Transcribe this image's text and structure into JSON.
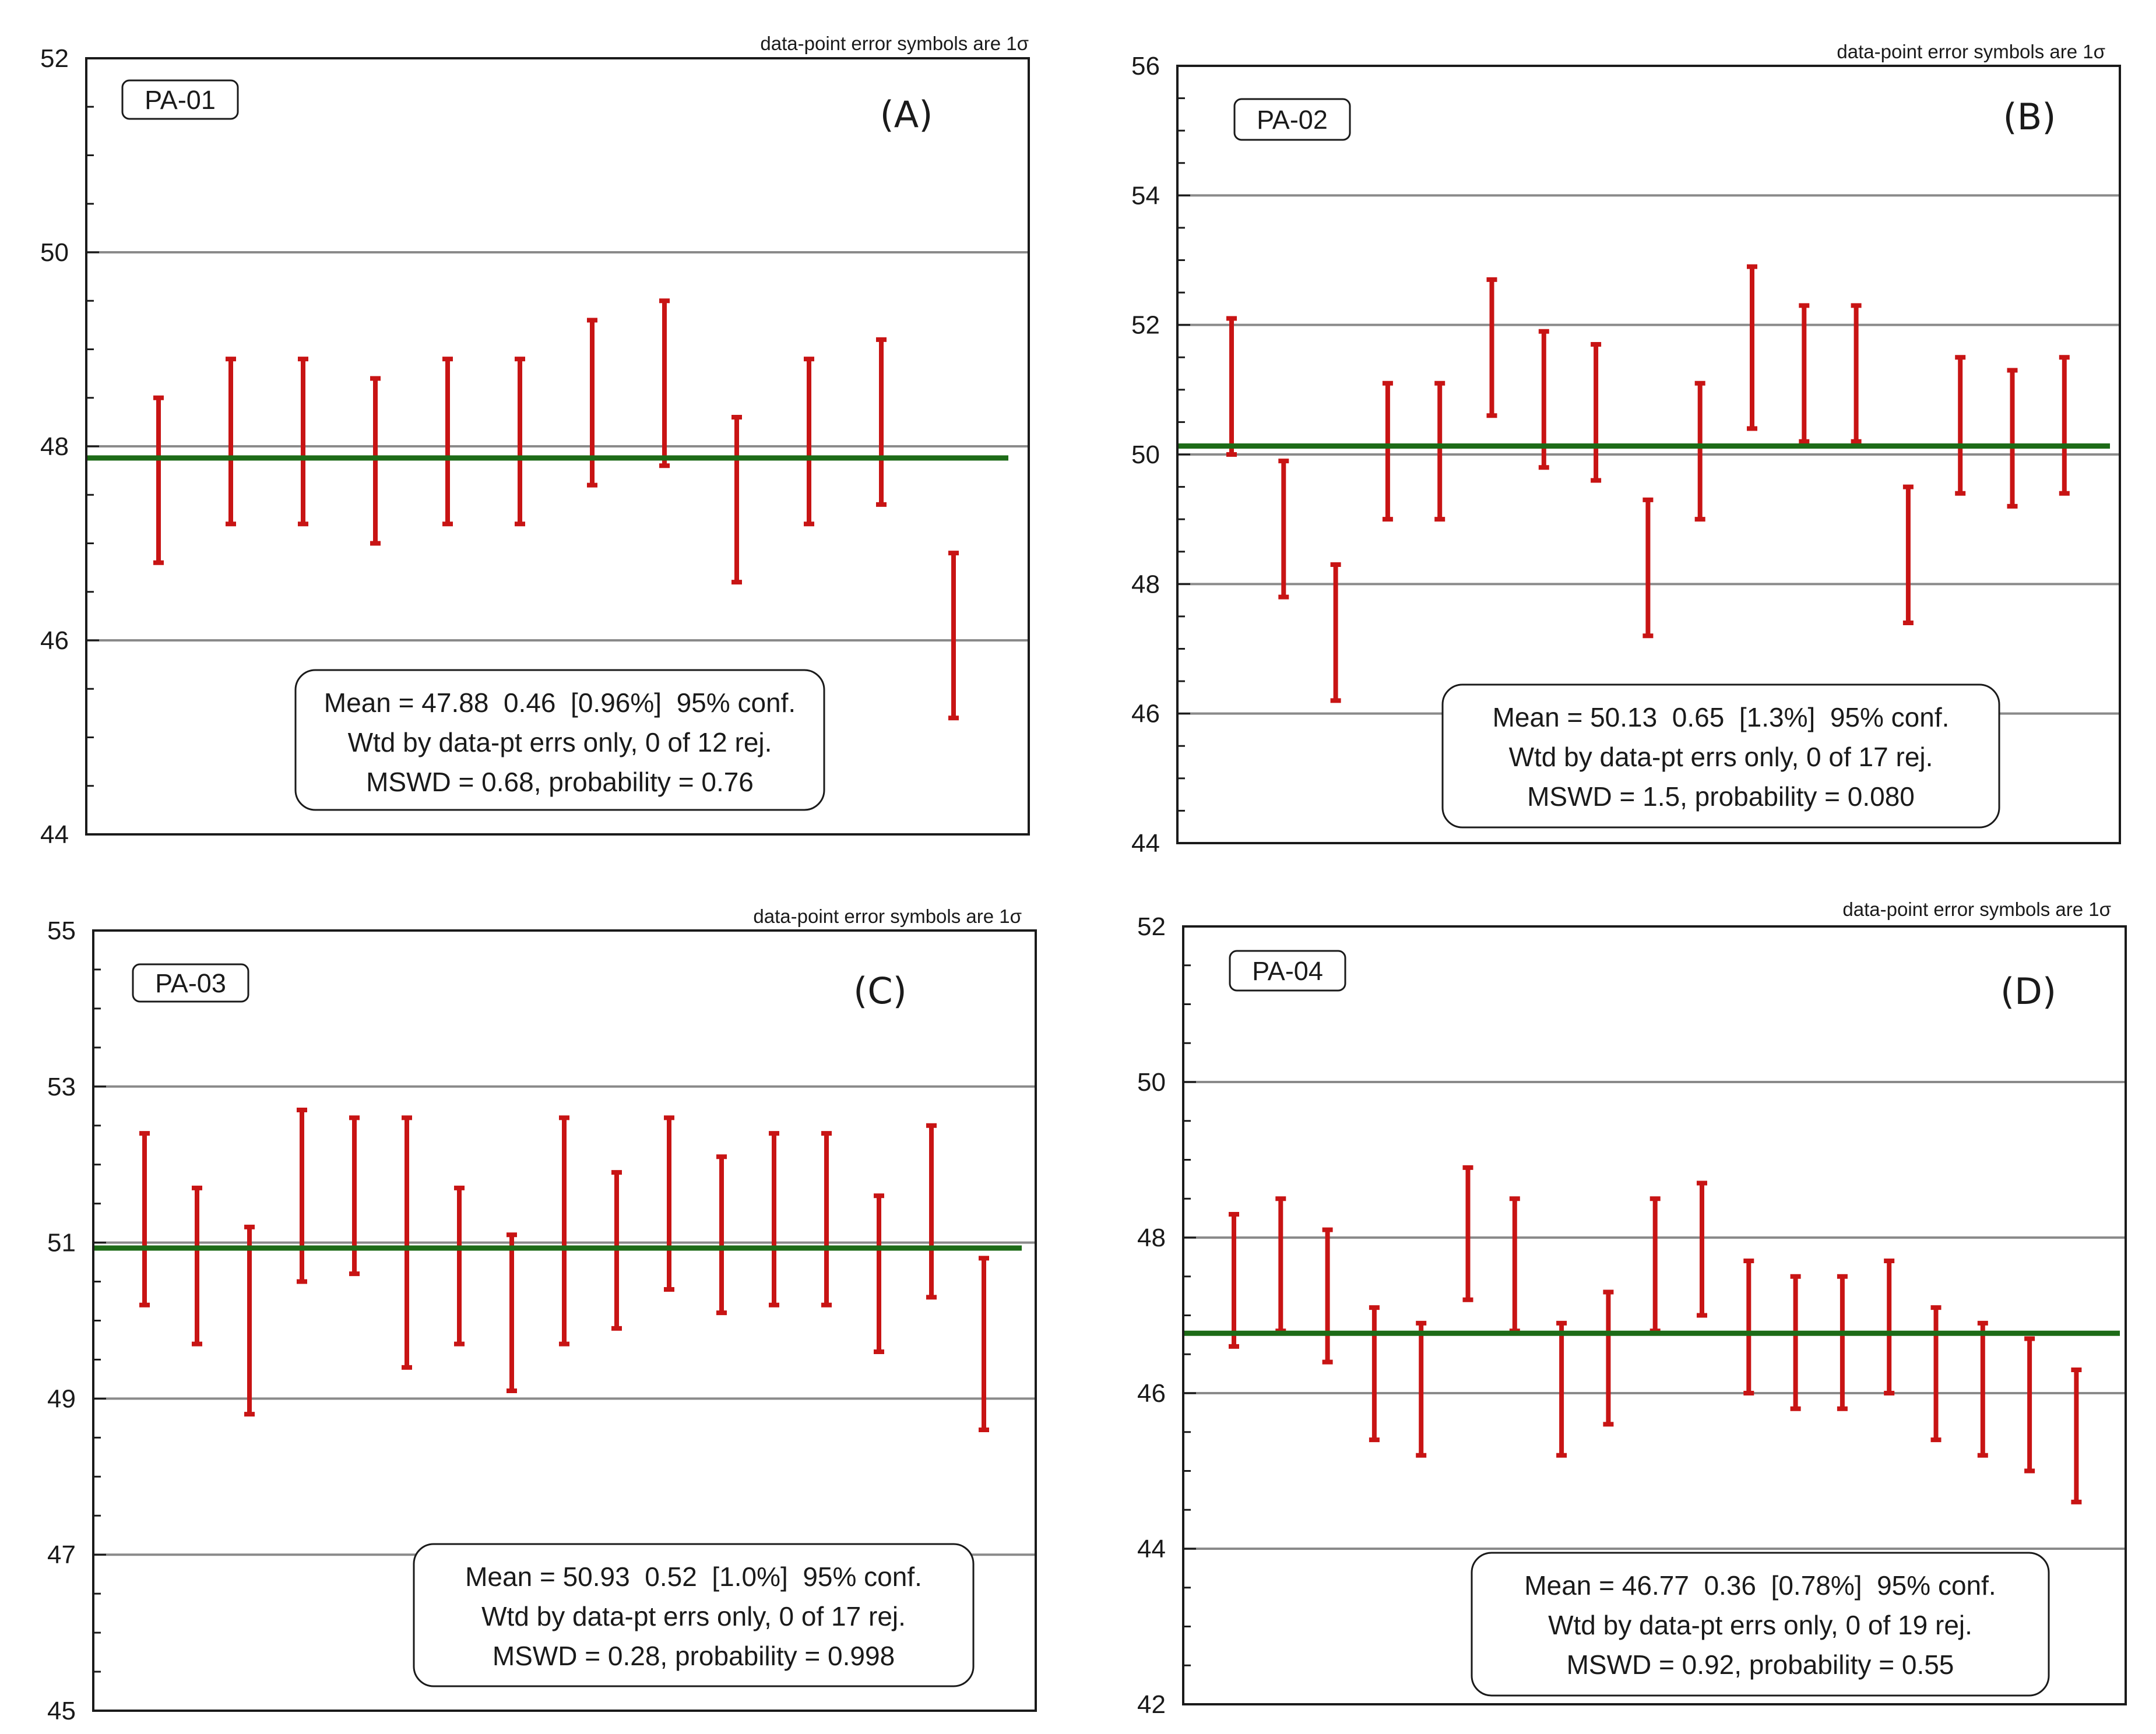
{
  "note": "data-point error symbols are 1σ",
  "colors": {
    "errorbar": "#c81414",
    "mean_line": "#1d6b17",
    "gridline": "#8a8a8a",
    "frame": "#1a1a1a"
  },
  "chart_data": [
    {
      "type": "errorbar",
      "panel": "(A)",
      "sample": "PA-01",
      "ylim": [
        44,
        52
      ],
      "yticks": [
        "44",
        "46",
        "48",
        "50",
        "52"
      ],
      "gridlines": [
        46,
        48,
        50
      ],
      "mean": 47.88,
      "points": [
        {
          "low": 46.8,
          "high": 48.5
        },
        {
          "low": 47.2,
          "high": 48.9
        },
        {
          "low": 47.2,
          "high": 48.9
        },
        {
          "low": 47.0,
          "high": 48.7
        },
        {
          "low": 47.2,
          "high": 48.9
        },
        {
          "low": 47.2,
          "high": 48.9
        },
        {
          "low": 47.6,
          "high": 49.3
        },
        {
          "low": 47.8,
          "high": 49.5
        },
        {
          "low": 46.6,
          "high": 48.3
        },
        {
          "low": 47.2,
          "high": 48.9
        },
        {
          "low": 47.4,
          "high": 49.1
        },
        {
          "low": 45.2,
          "high": 46.9
        }
      ],
      "stats": [
        "Mean = 47.88  0.46  [0.96%]  95% conf.",
        "Wtd by data-pt errs only, 0 of 12 rej.",
        "MSWD = 0.68, probability = 0.76"
      ]
    },
    {
      "type": "errorbar",
      "panel": "(B)",
      "sample": "PA-02",
      "ylim": [
        44,
        56
      ],
      "yticks": [
        "44",
        "46",
        "48",
        "50",
        "52",
        "54",
        "56"
      ],
      "gridlines": [
        46,
        48,
        50,
        52,
        54
      ],
      "mean": 50.13,
      "points": [
        {
          "low": 50.0,
          "high": 52.1
        },
        {
          "low": 47.8,
          "high": 49.9
        },
        {
          "low": 46.2,
          "high": 48.3
        },
        {
          "low": 49.0,
          "high": 51.1
        },
        {
          "low": 49.0,
          "high": 51.1
        },
        {
          "low": 50.6,
          "high": 52.7
        },
        {
          "low": 49.8,
          "high": 51.9
        },
        {
          "low": 49.6,
          "high": 51.7
        },
        {
          "low": 47.2,
          "high": 49.3
        },
        {
          "low": 49.0,
          "high": 51.1
        },
        {
          "low": 50.4,
          "high": 52.9
        },
        {
          "low": 50.2,
          "high": 52.3
        },
        {
          "low": 50.2,
          "high": 52.3
        },
        {
          "low": 47.4,
          "high": 49.5
        },
        {
          "low": 49.4,
          "high": 51.5
        },
        {
          "low": 49.2,
          "high": 51.3
        },
        {
          "low": 49.4,
          "high": 51.5
        }
      ],
      "stats": [
        "Mean = 50.13  0.65  [1.3%]  95% conf.",
        "Wtd by data-pt errs only, 0 of 17 rej.",
        "MSWD = 1.5, probability = 0.080"
      ]
    },
    {
      "type": "errorbar",
      "panel": "(C)",
      "sample": "PA-03",
      "ylim": [
        45,
        55
      ],
      "yticks": [
        "45",
        "47",
        "49",
        "51",
        "53",
        "55"
      ],
      "gridlines": [
        47,
        49,
        51,
        53
      ],
      "mean": 50.93,
      "points": [
        {
          "low": 50.2,
          "high": 52.4
        },
        {
          "low": 49.7,
          "high": 51.7
        },
        {
          "low": 48.8,
          "high": 51.2
        },
        {
          "low": 50.5,
          "high": 52.7
        },
        {
          "low": 50.6,
          "high": 52.6
        },
        {
          "low": 49.4,
          "high": 52.6
        },
        {
          "low": 49.7,
          "high": 51.7
        },
        {
          "low": 49.1,
          "high": 51.1
        },
        {
          "low": 49.7,
          "high": 52.6
        },
        {
          "low": 49.9,
          "high": 51.9
        },
        {
          "low": 50.4,
          "high": 52.6
        },
        {
          "low": 50.1,
          "high": 52.1
        },
        {
          "low": 50.2,
          "high": 52.4
        },
        {
          "low": 50.2,
          "high": 52.4
        },
        {
          "low": 49.6,
          "high": 51.6
        },
        {
          "low": 50.3,
          "high": 52.5
        },
        {
          "low": 48.6,
          "high": 50.8
        }
      ],
      "stats": [
        "Mean = 50.93  0.52  [1.0%]  95% conf.",
        "Wtd by data-pt errs only, 0 of 17 rej.",
        "MSWD = 0.28, probability = 0.998"
      ]
    },
    {
      "type": "errorbar",
      "panel": "(D)",
      "sample": "PA-04",
      "ylim": [
        42,
        52
      ],
      "yticks": [
        "42",
        "44",
        "46",
        "48",
        "50",
        "52"
      ],
      "gridlines": [
        44,
        46,
        48,
        50
      ],
      "mean": 46.77,
      "points": [
        {
          "low": 46.6,
          "high": 48.3
        },
        {
          "low": 46.8,
          "high": 48.5
        },
        {
          "low": 46.4,
          "high": 48.1
        },
        {
          "low": 45.4,
          "high": 47.1
        },
        {
          "low": 45.2,
          "high": 46.9
        },
        {
          "low": 47.2,
          "high": 48.9
        },
        {
          "low": 46.8,
          "high": 48.5
        },
        {
          "low": 45.2,
          "high": 46.9
        },
        {
          "low": 45.6,
          "high": 47.3
        },
        {
          "low": 46.8,
          "high": 48.5
        },
        {
          "low": 47.0,
          "high": 48.7
        },
        {
          "low": 46.0,
          "high": 47.7
        },
        {
          "low": 45.8,
          "high": 47.5
        },
        {
          "low": 45.8,
          "high": 47.5
        },
        {
          "low": 46.0,
          "high": 47.7
        },
        {
          "low": 45.4,
          "high": 47.1
        },
        {
          "low": 45.2,
          "high": 46.9
        },
        {
          "low": 45.0,
          "high": 46.7
        },
        {
          "low": 44.6,
          "high": 46.3
        }
      ],
      "stats": [
        "Mean = 46.77  0.36  [0.78%]  95% conf.",
        "Wtd by data-pt errs only, 0 of 19 rej.",
        "MSWD = 0.92, probability = 0.55"
      ]
    }
  ]
}
